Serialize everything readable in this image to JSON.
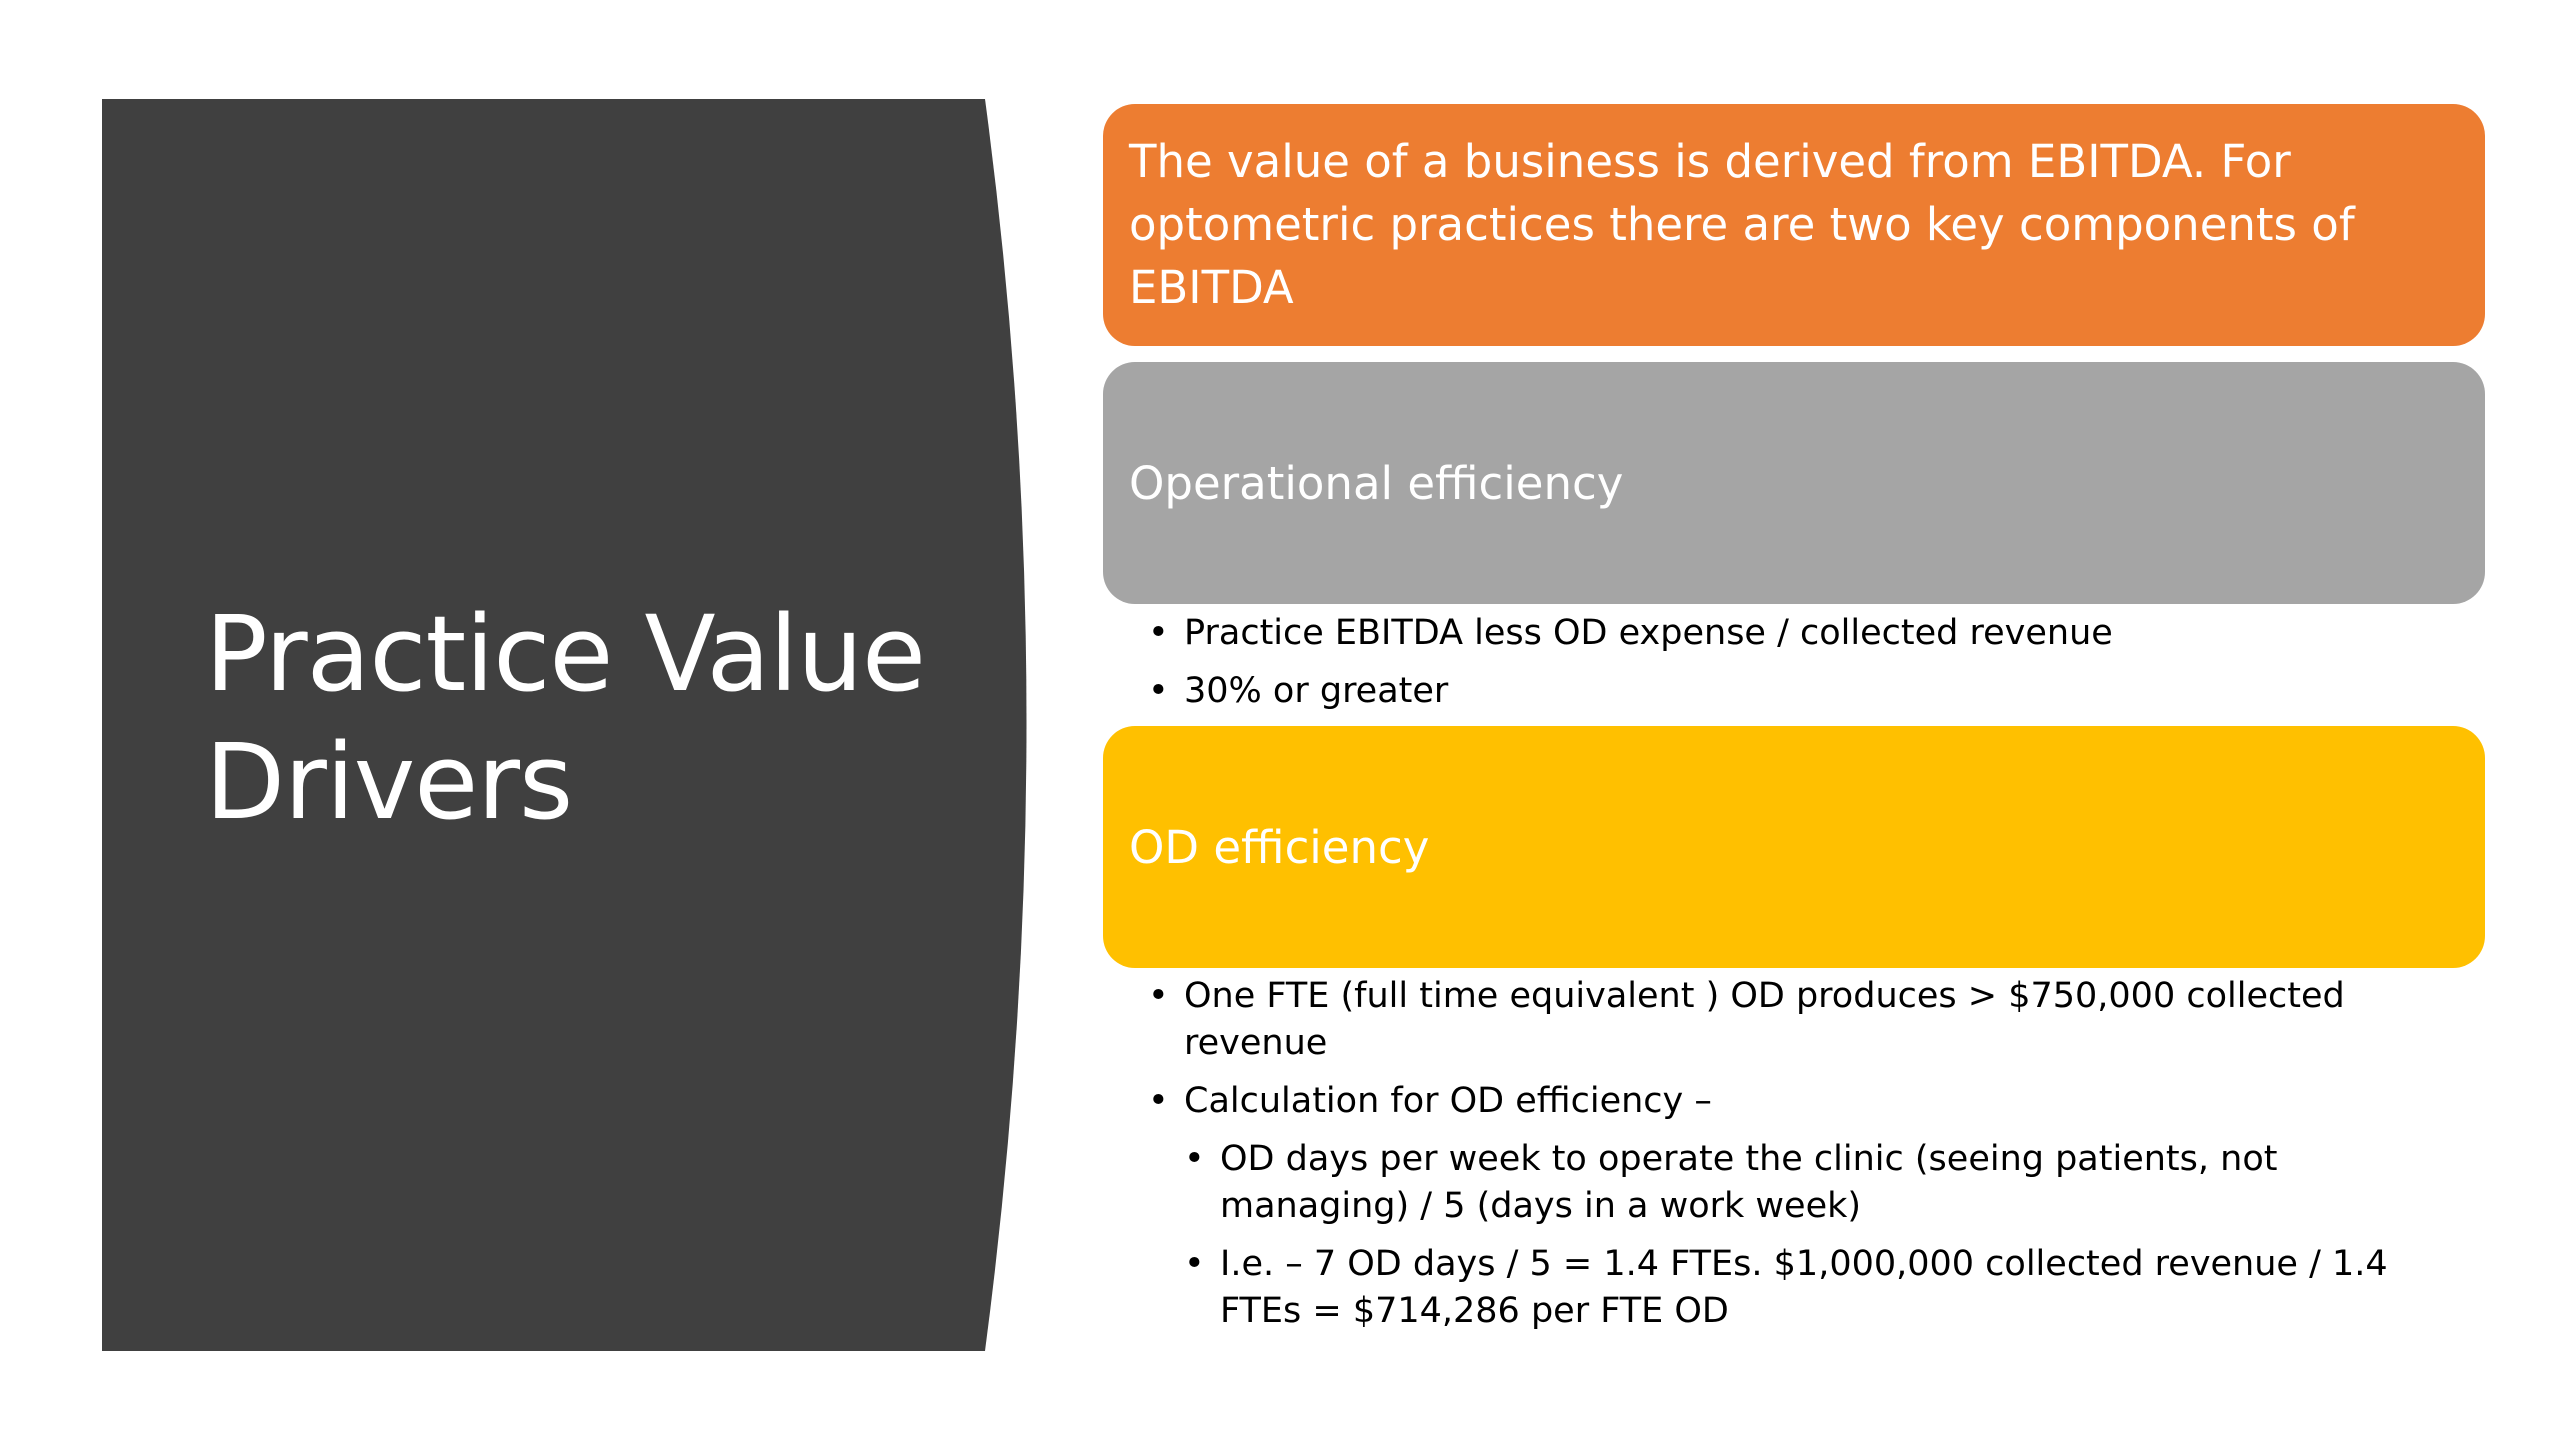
{
  "slide": {
    "title": "Practice Value Drivers",
    "colors": {
      "title_panel": "#404040",
      "orange": "#ed7d31",
      "gray": "#a5a5a5",
      "gold": "#ffc000"
    }
  },
  "boxes": {
    "intro": "The value of a business is derived from EBITDA.  For optometric practices there are two key components of EBITDA",
    "operational": "Operational efficiency",
    "od": "OD efficiency"
  },
  "operational_bullets": [
    "Practice EBITDA less OD expense /  collected revenue",
    "30% or greater"
  ],
  "od_bullets": [
    "One FTE (full time equivalent ) OD produces > $750,000 collected revenue",
    "Calculation for OD efficiency –"
  ],
  "od_sub_bullets": [
    "OD days per week to operate the clinic (seeing patients, not managing) / 5 (days in a work week)",
    "I.e. – 7 OD days / 5 = 1.4 FTEs. $1,000,000 collected revenue / 1.4 FTEs = $714,286 per FTE OD"
  ]
}
